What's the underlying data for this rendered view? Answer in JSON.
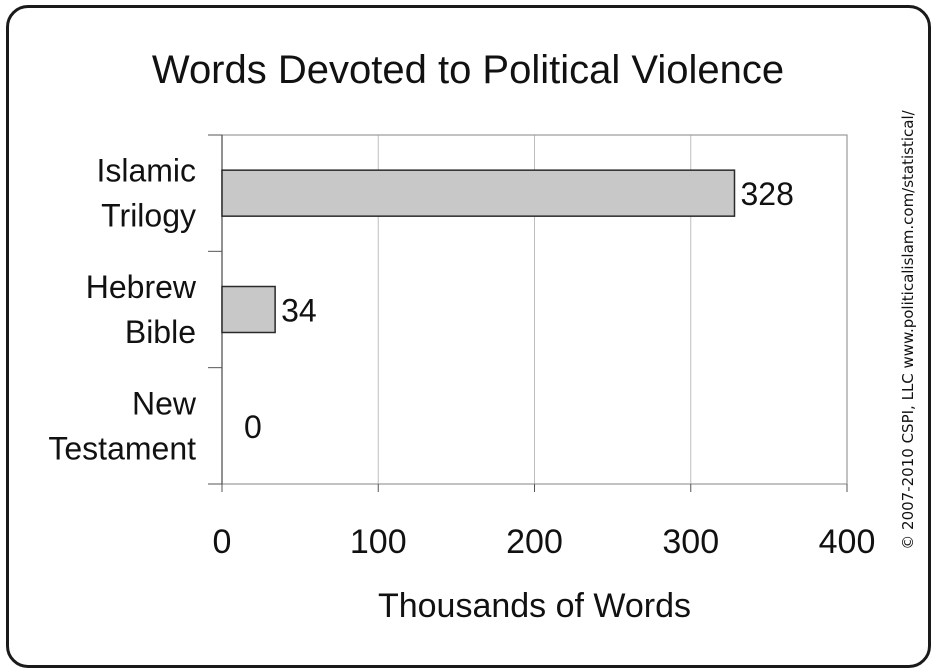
{
  "chart_data": {
    "type": "bar",
    "orientation": "horizontal",
    "title": "Words Devoted to Political Violence",
    "xlabel": "Thousands of Words",
    "ylabel": "",
    "categories": [
      [
        "Islamic",
        "Trilogy"
      ],
      [
        "Hebrew",
        "Bible"
      ],
      [
        "New",
        "Testament"
      ]
    ],
    "values": [
      328,
      34,
      0
    ],
    "data_labels": [
      "328",
      "34",
      "0"
    ],
    "xlim": [
      0,
      400
    ],
    "xticks": [
      0,
      100,
      200,
      300,
      400
    ],
    "grid": "vertical",
    "bar_color": "#c8c8c8",
    "legend": "none"
  },
  "credit": "© 2007-2010 CSPI, LLC  www.politicalislam.com/statistical/"
}
